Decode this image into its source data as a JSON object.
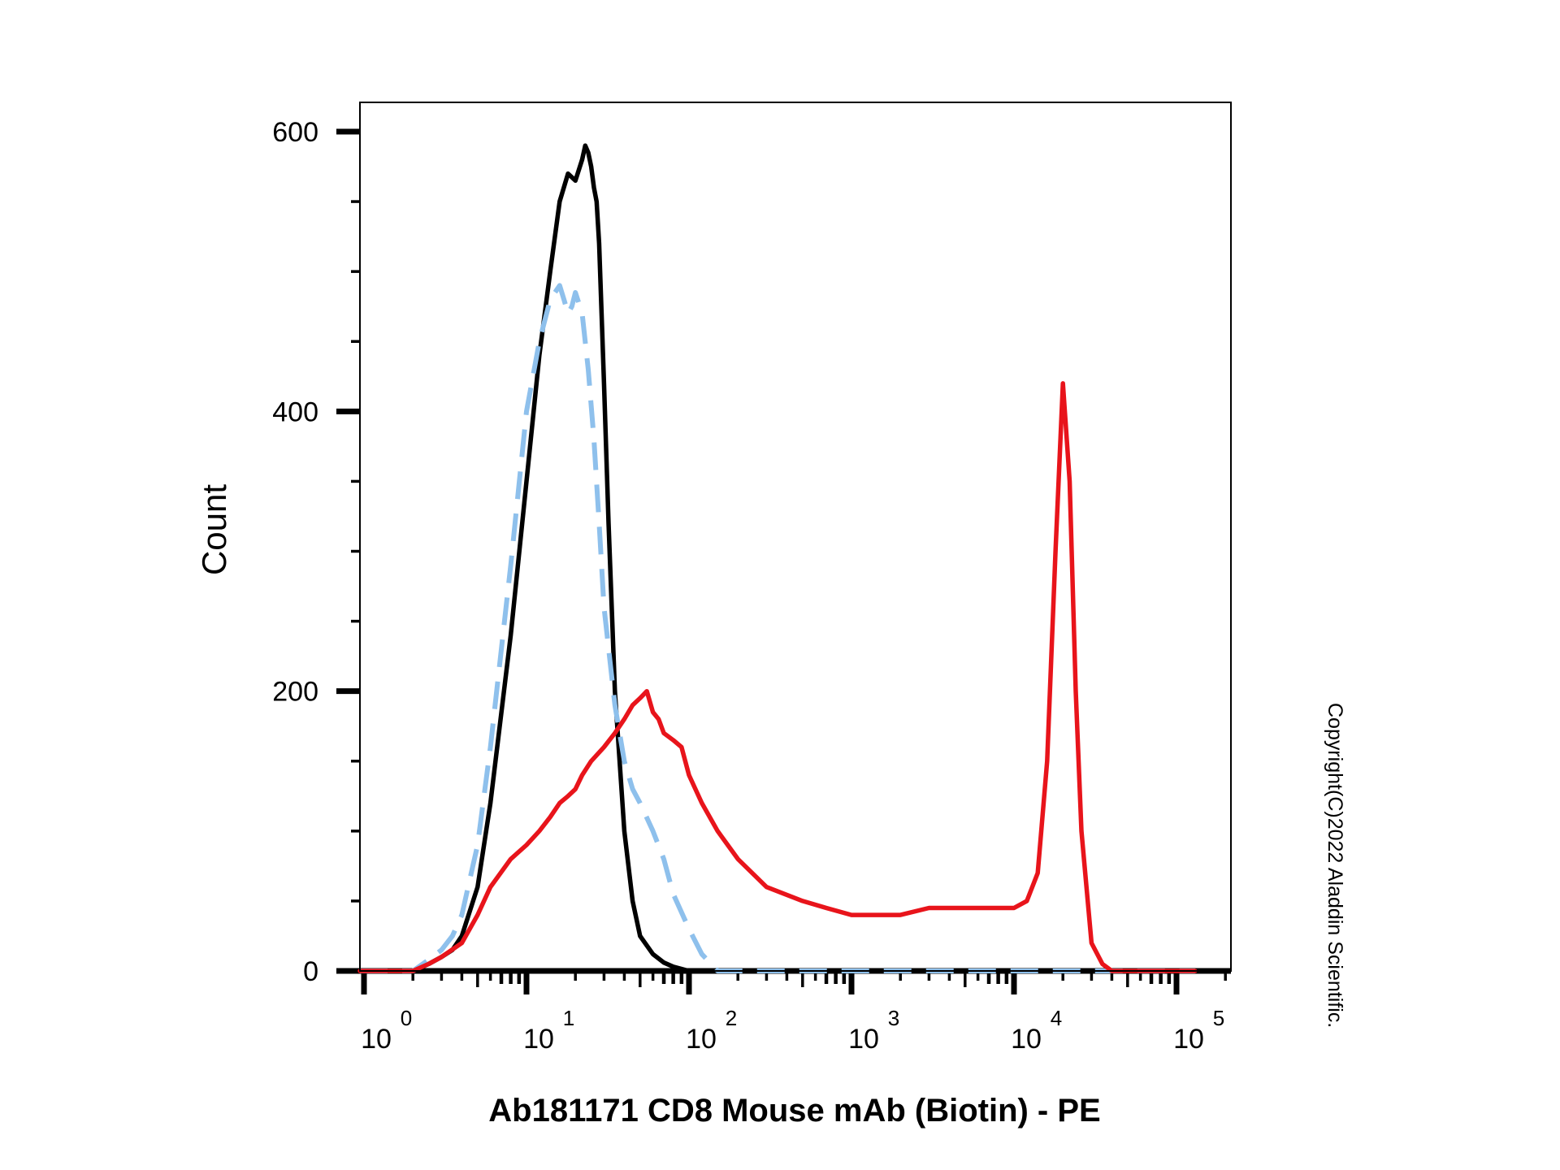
{
  "chart_data": {
    "type": "line",
    "title": "",
    "xlabel": "Ab181171 CD8 Mouse mAb (Biotin) - PE",
    "ylabel": "Count",
    "x_scale": "log",
    "xlim": [
      0.6,
      130000
    ],
    "ylim": [
      0,
      600
    ],
    "y_ticks": [
      0,
      200,
      400,
      600
    ],
    "y_tick_labels": [
      "0",
      "200",
      "400",
      "600"
    ],
    "x_ticks": [
      {
        "base": "10",
        "exp": "0",
        "value": 1
      },
      {
        "base": "10",
        "exp": "1",
        "value": 10
      },
      {
        "base": "10",
        "exp": "2",
        "value": 100
      },
      {
        "base": "10",
        "exp": "3",
        "value": 1000
      },
      {
        "base": "10",
        "exp": "4",
        "value": 10000
      },
      {
        "base": "10",
        "exp": "5",
        "value": 100000
      }
    ],
    "legend": "none",
    "grid": false,
    "series": [
      {
        "color": "#000000",
        "style": "solid",
        "x": [
          0.6,
          2.0,
          2.5,
          3.0,
          3.5,
          4.0,
          5.0,
          6.0,
          8.0,
          10.0,
          12.0,
          14.0,
          16.0,
          18.0,
          20.0,
          22.0,
          23.0,
          24.0,
          25.0,
          26.0,
          27.0,
          28.0,
          30.0,
          32.0,
          35.0,
          40.0,
          45.0,
          50.0,
          60.0,
          70.0,
          80.0,
          100.0,
          130000
        ],
        "y": [
          0,
          0,
          5,
          10,
          15,
          25,
          60,
          120,
          240,
          350,
          440,
          500,
          550,
          570,
          565,
          580,
          590,
          585,
          575,
          560,
          550,
          520,
          420,
          320,
          200,
          100,
          50,
          25,
          12,
          6,
          3,
          0,
          0
        ]
      },
      {
        "color": "#8ec0ec",
        "style": "dashed",
        "x": [
          0.6,
          2.0,
          2.5,
          3.0,
          3.5,
          4.0,
          5.0,
          6.0,
          8.0,
          10.0,
          12.0,
          14.0,
          16.0,
          17.0,
          18.0,
          19.0,
          20.0,
          22.0,
          24.0,
          26.0,
          28.0,
          30.0,
          35.0,
          40.0,
          45.0,
          50.0,
          60.0,
          70.0,
          80.0,
          100.0,
          120.0,
          150.0,
          130000
        ],
        "y": [
          0,
          0,
          8,
          15,
          25,
          40,
          90,
          160,
          290,
          400,
          450,
          480,
          490,
          480,
          470,
          475,
          485,
          470,
          430,
          380,
          320,
          260,
          190,
          150,
          130,
          120,
          100,
          80,
          55,
          30,
          12,
          0,
          0
        ]
      },
      {
        "color": "#e8141b",
        "style": "solid",
        "x": [
          0.6,
          2.0,
          2.5,
          3.0,
          4.0,
          5.0,
          6.0,
          8.0,
          10.0,
          12.0,
          14.0,
          16.0,
          18.0,
          20.0,
          22.0,
          25.0,
          30.0,
          35.0,
          40.0,
          45.0,
          50.0,
          55.0,
          60.0,
          65.0,
          70.0,
          80.0,
          90.0,
          100.0,
          120.0,
          150.0,
          200.0,
          300.0,
          500.0,
          700.0,
          1000.0,
          1500.0,
          2000.0,
          3000.0,
          4000.0,
          5000.0,
          7000.0,
          10000.0,
          12000.0,
          14000.0,
          16000.0,
          18000.0,
          20000.0,
          22000.0,
          24000.0,
          26000.0,
          30000.0,
          35000.0,
          40000.0,
          130000
        ],
        "y": [
          0,
          0,
          5,
          10,
          20,
          40,
          60,
          80,
          90,
          100,
          110,
          120,
          125,
          130,
          140,
          150,
          160,
          170,
          180,
          190,
          195,
          200,
          185,
          180,
          170,
          165,
          160,
          140,
          120,
          100,
          80,
          60,
          50,
          45,
          40,
          40,
          40,
          45,
          45,
          45,
          45,
          45,
          50,
          70,
          150,
          300,
          420,
          350,
          200,
          100,
          20,
          5,
          0,
          0
        ]
      }
    ]
  },
  "watermark": "Copyright(C)2022 Aladdin Scientific."
}
